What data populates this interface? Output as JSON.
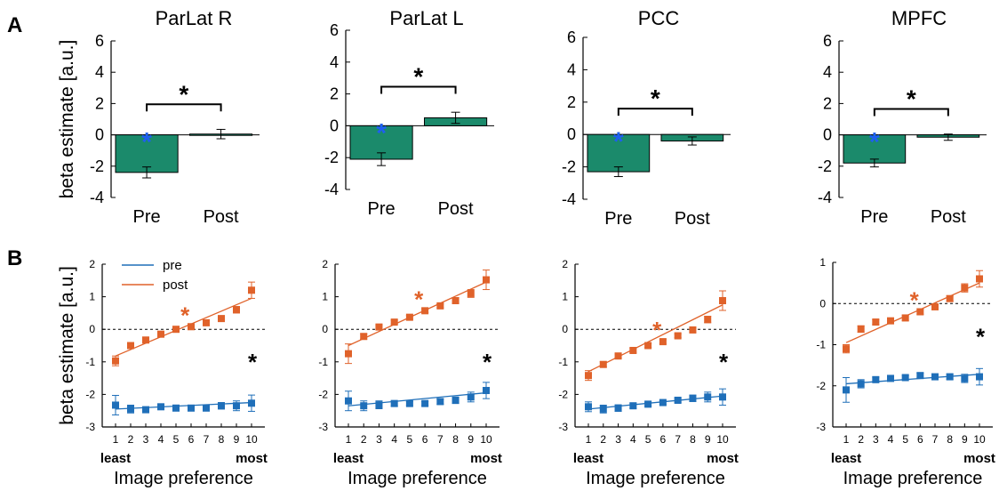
{
  "panel_labels": [
    "A",
    "B"
  ],
  "colors": {
    "bar": "#1b8a6b",
    "pre": "#1f6fb9",
    "post": "#e0622a",
    "sig_blue": "#1f5ff0",
    "sig_black": "#000000"
  },
  "chart_data": [
    {
      "type": "bar",
      "title": "ParLat R",
      "ylabel": "beta estimate [a.u.]",
      "categories": [
        "Pre",
        "Post"
      ],
      "values": [
        -2.4,
        0.05
      ],
      "errors": [
        0.35,
        0.3
      ],
      "ylim": [
        -4,
        6
      ],
      "yticks": [
        "-4",
        "-2",
        "0",
        "2",
        "4",
        "6"
      ],
      "annotations": {
        "pre_star": "*",
        "bracket_star": "*"
      }
    },
    {
      "type": "bar",
      "title": "ParLat L",
      "ylabel": "",
      "categories": [
        "Pre",
        "Post"
      ],
      "values": [
        -2.1,
        0.5
      ],
      "errors": [
        0.4,
        0.35
      ],
      "ylim": [
        -4,
        6
      ],
      "yticks": [
        "-4",
        "-2",
        "0",
        "2",
        "4",
        "6"
      ],
      "annotations": {
        "pre_star": "*",
        "bracket_star": "*"
      }
    },
    {
      "type": "bar",
      "title": "PCC",
      "ylabel": "",
      "categories": [
        "Pre",
        "Post"
      ],
      "values": [
        -2.3,
        -0.4
      ],
      "errors": [
        0.3,
        0.25
      ],
      "ylim": [
        -4,
        6
      ],
      "yticks": [
        "-4",
        "-2",
        "0",
        "2",
        "4",
        "6"
      ],
      "annotations": {
        "pre_star": "*",
        "bracket_star": "*"
      }
    },
    {
      "type": "bar",
      "title": "MPFC",
      "ylabel": "",
      "categories": [
        "Pre",
        "Post"
      ],
      "values": [
        -1.8,
        -0.15
      ],
      "errors": [
        0.25,
        0.2
      ],
      "ylim": [
        -4,
        6
      ],
      "yticks": [
        "-4",
        "-2",
        "0",
        "2",
        "4",
        "6"
      ],
      "annotations": {
        "pre_star": "*",
        "bracket_star": "*"
      }
    },
    {
      "type": "line",
      "xlabel": "Image preference",
      "ylabel": "beta estimate [a.u.]",
      "x": [
        1,
        2,
        3,
        4,
        5,
        6,
        7,
        8,
        9,
        10
      ],
      "x_end_labels": [
        "least",
        "most"
      ],
      "ylim": [
        -3,
        2
      ],
      "yticks": [
        "-3",
        "-2",
        "-1",
        "0",
        "1",
        "2"
      ],
      "legend": [
        "pre",
        "post"
      ],
      "series": [
        {
          "name": "pre",
          "values": [
            -2.33,
            -2.45,
            -2.47,
            -2.38,
            -2.42,
            -2.42,
            -2.42,
            -2.35,
            -2.35,
            -2.27
          ],
          "errors": [
            0.3,
            0.12,
            0.08,
            0.08,
            0.06,
            0.06,
            0.08,
            0.1,
            0.15,
            0.25
          ],
          "fit": [
            -2.45,
            -2.25
          ]
        },
        {
          "name": "post",
          "values": [
            -0.97,
            -0.5,
            -0.33,
            -0.15,
            0.0,
            0.08,
            0.2,
            0.33,
            0.6,
            1.2
          ],
          "errors": [
            0.15,
            0.08,
            0.06,
            0.06,
            0.06,
            0.06,
            0.08,
            0.08,
            0.1,
            0.25
          ],
          "fit": [
            -0.82,
            0.95
          ]
        }
      ],
      "annotations": {
        "post_star": "*",
        "interaction_star": "*"
      }
    },
    {
      "type": "line",
      "xlabel": "Image preference",
      "ylabel": "",
      "x": [
        1,
        2,
        3,
        4,
        5,
        6,
        7,
        8,
        9,
        10
      ],
      "x_end_labels": [
        "least",
        "most"
      ],
      "ylim": [
        -3,
        2
      ],
      "yticks": [
        "-3",
        "-2",
        "-1",
        "0",
        "1",
        "2"
      ],
      "legend": [],
      "series": [
        {
          "name": "pre",
          "values": [
            -2.2,
            -2.35,
            -2.32,
            -2.28,
            -2.28,
            -2.28,
            -2.22,
            -2.18,
            -2.08,
            -1.88
          ],
          "errors": [
            0.3,
            0.15,
            0.12,
            0.08,
            0.06,
            0.06,
            0.08,
            0.1,
            0.15,
            0.25
          ],
          "fit": [
            -2.35,
            -1.95
          ]
        },
        {
          "name": "post",
          "values": [
            -0.75,
            -0.22,
            0.07,
            0.22,
            0.37,
            0.57,
            0.72,
            0.88,
            1.1,
            1.52
          ],
          "errors": [
            0.3,
            0.08,
            0.06,
            0.06,
            0.06,
            0.06,
            0.06,
            0.08,
            0.12,
            0.3
          ],
          "fit": [
            -0.5,
            1.45
          ]
        }
      ],
      "annotations": {
        "post_star": "*",
        "interaction_star": "*"
      }
    },
    {
      "type": "line",
      "xlabel": "Image preference",
      "ylabel": "",
      "x": [
        1,
        2,
        3,
        4,
        5,
        6,
        7,
        8,
        9,
        10
      ],
      "x_end_labels": [
        "least",
        "most"
      ],
      "ylim": [
        -3,
        2
      ],
      "yticks": [
        "-3",
        "-2",
        "-1",
        "0",
        "1",
        "2"
      ],
      "legend": [],
      "series": [
        {
          "name": "pre",
          "values": [
            -2.38,
            -2.45,
            -2.42,
            -2.35,
            -2.3,
            -2.25,
            -2.18,
            -2.12,
            -2.08,
            -2.08
          ],
          "errors": [
            0.15,
            0.12,
            0.1,
            0.08,
            0.06,
            0.06,
            0.06,
            0.1,
            0.15,
            0.25
          ],
          "fit": [
            -2.45,
            -2.05
          ]
        },
        {
          "name": "post",
          "values": [
            -1.42,
            -1.08,
            -0.82,
            -0.65,
            -0.5,
            -0.38,
            -0.2,
            -0.02,
            0.3,
            0.88
          ],
          "errors": [
            0.15,
            0.08,
            0.06,
            0.06,
            0.06,
            0.06,
            0.06,
            0.06,
            0.1,
            0.3
          ],
          "fit": [
            -1.3,
            0.75
          ]
        }
      ],
      "annotations": {
        "post_star": "*",
        "interaction_star": "*"
      }
    },
    {
      "type": "line",
      "xlabel": "Image preference",
      "ylabel": "",
      "x": [
        1,
        2,
        3,
        4,
        5,
        6,
        7,
        8,
        9,
        10
      ],
      "x_end_labels": [
        "least",
        "most"
      ],
      "ylim": [
        -3,
        1
      ],
      "yticks": [
        "-3",
        "-2",
        "-1",
        "0",
        "1"
      ],
      "legend": [],
      "series": [
        {
          "name": "pre",
          "values": [
            -2.1,
            -1.95,
            -1.85,
            -1.82,
            -1.8,
            -1.75,
            -1.78,
            -1.78,
            -1.82,
            -1.78
          ],
          "errors": [
            0.3,
            0.1,
            0.06,
            0.05,
            0.05,
            0.06,
            0.06,
            0.06,
            0.1,
            0.2
          ],
          "fit": [
            -1.95,
            -1.72
          ]
        },
        {
          "name": "post",
          "values": [
            -1.1,
            -0.62,
            -0.45,
            -0.42,
            -0.35,
            -0.2,
            -0.08,
            0.12,
            0.38,
            0.6
          ],
          "errors": [
            0.1,
            0.08,
            0.06,
            0.06,
            0.06,
            0.06,
            0.06,
            0.06,
            0.1,
            0.2
          ],
          "fit": [
            -0.95,
            0.5
          ]
        }
      ],
      "annotations": {
        "post_star": "*",
        "interaction_star": "*"
      }
    }
  ]
}
